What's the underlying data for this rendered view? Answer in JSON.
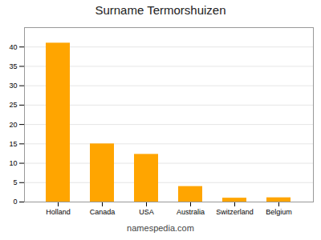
{
  "chart_data": {
    "type": "bar",
    "title": "Surname Termorshuizen",
    "categories": [
      "Holland",
      "Canada",
      "USA",
      "Australia",
      "Switzerland",
      "Belgium"
    ],
    "values": [
      41,
      15,
      12.3,
      4,
      1,
      1.1
    ],
    "color": "#FFA500",
    "ylim": [
      0,
      45
    ],
    "yticks": [
      0,
      5,
      10,
      15,
      20,
      25,
      30,
      35,
      40
    ],
    "grid": true,
    "caption": "namespedia.com"
  }
}
